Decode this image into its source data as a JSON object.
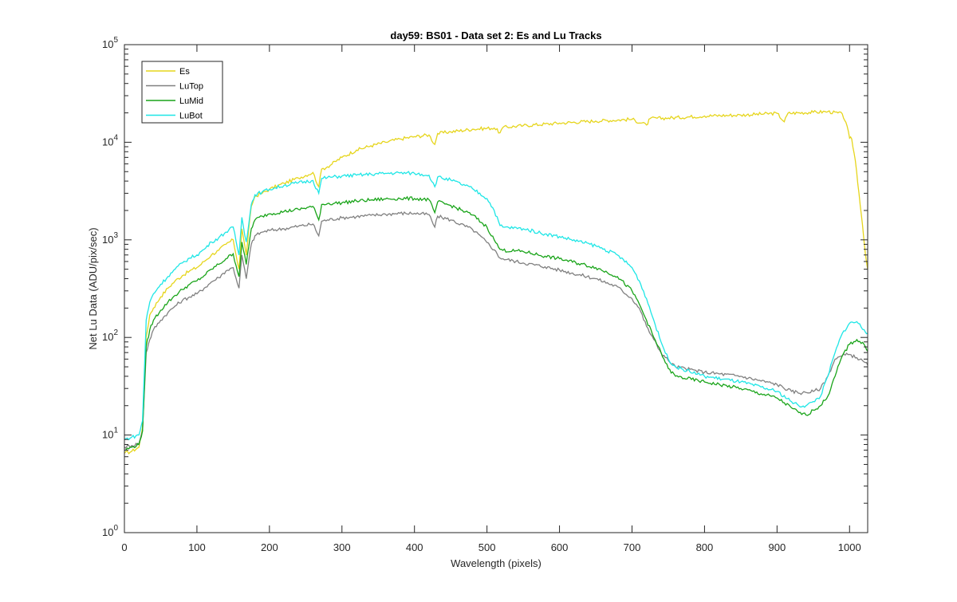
{
  "chart_data": {
    "type": "line",
    "title": "day59: BS01 - Data set 2: Es and Lu Tracks",
    "xlabel": "Wavelength (pixels)",
    "ylabel": "Net Lu Data (ADU/pix/sec)",
    "xlim": [
      0,
      1025
    ],
    "ylim": [
      1,
      100000
    ],
    "yscale": "log",
    "grid": false,
    "legend_location": "top-left",
    "x_ticks": [
      "0",
      "100",
      "200",
      "300",
      "400",
      "500",
      "600",
      "700",
      "800",
      "900",
      "1000"
    ],
    "y_ticks": [
      {
        "base": "10",
        "exp": "0"
      },
      {
        "base": "10",
        "exp": "1"
      },
      {
        "base": "10",
        "exp": "2"
      },
      {
        "base": "10",
        "exp": "3"
      },
      {
        "base": "10",
        "exp": "4"
      },
      {
        "base": "10",
        "exp": "5"
      }
    ],
    "series": [
      {
        "name": "Es",
        "color": "#e6d51c",
        "points": [
          [
            0,
            6.5
          ],
          [
            10,
            6.8
          ],
          [
            20,
            7.5
          ],
          [
            25,
            12
          ],
          [
            30,
            100
          ],
          [
            35,
            170
          ],
          [
            40,
            200
          ],
          [
            50,
            260
          ],
          [
            60,
            320
          ],
          [
            70,
            380
          ],
          [
            80,
            430
          ],
          [
            90,
            480
          ],
          [
            100,
            520
          ],
          [
            110,
            600
          ],
          [
            120,
            700
          ],
          [
            130,
            780
          ],
          [
            140,
            900
          ],
          [
            150,
            1000
          ],
          [
            158,
            500
          ],
          [
            162,
            1300
          ],
          [
            168,
            700
          ],
          [
            175,
            2200
          ],
          [
            180,
            2800
          ],
          [
            190,
            3000
          ],
          [
            200,
            3300
          ],
          [
            220,
            3800
          ],
          [
            240,
            4300
          ],
          [
            260,
            4900
          ],
          [
            268,
            3500
          ],
          [
            272,
            5300
          ],
          [
            280,
            5600
          ],
          [
            300,
            7000
          ],
          [
            320,
            8300
          ],
          [
            340,
            9200
          ],
          [
            360,
            10000
          ],
          [
            380,
            10800
          ],
          [
            400,
            11400
          ],
          [
            420,
            11900
          ],
          [
            428,
            9500
          ],
          [
            432,
            12300
          ],
          [
            450,
            12800
          ],
          [
            480,
            13600
          ],
          [
            510,
            14000
          ],
          [
            518,
            12500
          ],
          [
            522,
            14200
          ],
          [
            550,
            14800
          ],
          [
            600,
            15700
          ],
          [
            650,
            16500
          ],
          [
            700,
            17200
          ],
          [
            720,
            15000
          ],
          [
            725,
            17500
          ],
          [
            750,
            17700
          ],
          [
            800,
            18600
          ],
          [
            850,
            19000
          ],
          [
            900,
            19800
          ],
          [
            910,
            16200
          ],
          [
            915,
            19800
          ],
          [
            950,
            20300
          ],
          [
            970,
            20600
          ],
          [
            990,
            19500
          ],
          [
            995,
            16000
          ],
          [
            1000,
            11000
          ],
          [
            1003,
            10800
          ],
          [
            1008,
            6500
          ],
          [
            1013,
            3000
          ],
          [
            1018,
            1400
          ],
          [
            1022,
            700
          ],
          [
            1025,
            500
          ]
        ]
      },
      {
        "name": "LuTop",
        "color": "#808080",
        "points": [
          [
            0,
            7.5
          ],
          [
            10,
            7.8
          ],
          [
            20,
            8.2
          ],
          [
            25,
            11
          ],
          [
            30,
            70
          ],
          [
            35,
            95
          ],
          [
            40,
            120
          ],
          [
            50,
            150
          ],
          [
            60,
            180
          ],
          [
            70,
            210
          ],
          [
            80,
            240
          ],
          [
            90,
            260
          ],
          [
            100,
            280
          ],
          [
            110,
            320
          ],
          [
            120,
            370
          ],
          [
            130,
            410
          ],
          [
            140,
            480
          ],
          [
            150,
            520
          ],
          [
            158,
            320
          ],
          [
            162,
            700
          ],
          [
            168,
            400
          ],
          [
            175,
            900
          ],
          [
            180,
            1100
          ],
          [
            190,
            1200
          ],
          [
            200,
            1250
          ],
          [
            220,
            1300
          ],
          [
            240,
            1380
          ],
          [
            260,
            1450
          ],
          [
            268,
            1100
          ],
          [
            272,
            1550
          ],
          [
            280,
            1600
          ],
          [
            300,
            1680
          ],
          [
            320,
            1730
          ],
          [
            340,
            1780
          ],
          [
            360,
            1830
          ],
          [
            380,
            1870
          ],
          [
            400,
            1870
          ],
          [
            420,
            1820
          ],
          [
            428,
            1350
          ],
          [
            432,
            1750
          ],
          [
            450,
            1600
          ],
          [
            480,
            1280
          ],
          [
            500,
            940
          ],
          [
            510,
            790
          ],
          [
            518,
            650
          ],
          [
            522,
            640
          ],
          [
            550,
            580
          ],
          [
            580,
            530
          ],
          [
            600,
            490
          ],
          [
            650,
            400
          ],
          [
            680,
            330
          ],
          [
            700,
            250
          ],
          [
            710,
            200
          ],
          [
            720,
            130
          ],
          [
            730,
            95
          ],
          [
            740,
            70
          ],
          [
            750,
            58
          ],
          [
            760,
            50
          ],
          [
            800,
            44
          ],
          [
            850,
            40
          ],
          [
            900,
            33
          ],
          [
            920,
            28
          ],
          [
            935,
            27
          ],
          [
            950,
            28
          ],
          [
            960,
            30
          ],
          [
            970,
            40
          ],
          [
            980,
            60
          ],
          [
            990,
            65
          ],
          [
            1000,
            67
          ],
          [
            1010,
            62
          ],
          [
            1020,
            56
          ],
          [
            1025,
            52
          ]
        ]
      },
      {
        "name": "LuMid",
        "color": "#19a419",
        "points": [
          [
            0,
            7
          ],
          [
            10,
            7.5
          ],
          [
            20,
            8
          ],
          [
            25,
            11
          ],
          [
            30,
            80
          ],
          [
            35,
            120
          ],
          [
            40,
            150
          ],
          [
            50,
            190
          ],
          [
            60,
            230
          ],
          [
            70,
            270
          ],
          [
            80,
            310
          ],
          [
            90,
            350
          ],
          [
            100,
            380
          ],
          [
            110,
            430
          ],
          [
            120,
            500
          ],
          [
            130,
            560
          ],
          [
            140,
            640
          ],
          [
            150,
            720
          ],
          [
            158,
            420
          ],
          [
            162,
            950
          ],
          [
            168,
            560
          ],
          [
            175,
            1300
          ],
          [
            180,
            1600
          ],
          [
            190,
            1750
          ],
          [
            200,
            1850
          ],
          [
            220,
            1950
          ],
          [
            240,
            2050
          ],
          [
            260,
            2200
          ],
          [
            268,
            1600
          ],
          [
            272,
            2300
          ],
          [
            280,
            2350
          ],
          [
            300,
            2400
          ],
          [
            320,
            2500
          ],
          [
            340,
            2560
          ],
          [
            360,
            2620
          ],
          [
            380,
            2650
          ],
          [
            400,
            2650
          ],
          [
            420,
            2580
          ],
          [
            428,
            1900
          ],
          [
            432,
            2450
          ],
          [
            450,
            2250
          ],
          [
            480,
            1800
          ],
          [
            500,
            1350
          ],
          [
            510,
            1000
          ],
          [
            518,
            800
          ],
          [
            522,
            780
          ],
          [
            550,
            760
          ],
          [
            580,
            680
          ],
          [
            600,
            640
          ],
          [
            650,
            520
          ],
          [
            680,
            420
          ],
          [
            700,
            300
          ],
          [
            710,
            220
          ],
          [
            720,
            150
          ],
          [
            730,
            100
          ],
          [
            740,
            70
          ],
          [
            750,
            48
          ],
          [
            760,
            40
          ],
          [
            800,
            35
          ],
          [
            850,
            30
          ],
          [
            900,
            24
          ],
          [
            920,
            19
          ],
          [
            930,
            17
          ],
          [
            940,
            16
          ],
          [
            950,
            18
          ],
          [
            960,
            20
          ],
          [
            970,
            25
          ],
          [
            980,
            40
          ],
          [
            990,
            65
          ],
          [
            1000,
            85
          ],
          [
            1010,
            95
          ],
          [
            1020,
            85
          ],
          [
            1025,
            72
          ]
        ]
      },
      {
        "name": "LuBot",
        "color": "#1ee6e6",
        "points": [
          [
            0,
            9
          ],
          [
            10,
            9.5
          ],
          [
            20,
            10
          ],
          [
            25,
            14
          ],
          [
            30,
            150
          ],
          [
            35,
            230
          ],
          [
            40,
            280
          ],
          [
            50,
            350
          ],
          [
            60,
            420
          ],
          [
            70,
            500
          ],
          [
            80,
            580
          ],
          [
            90,
            650
          ],
          [
            100,
            700
          ],
          [
            110,
            800
          ],
          [
            120,
            950
          ],
          [
            130,
            1050
          ],
          [
            140,
            1200
          ],
          [
            150,
            1350
          ],
          [
            158,
            700
          ],
          [
            162,
            1700
          ],
          [
            168,
            950
          ],
          [
            175,
            2300
          ],
          [
            180,
            2900
          ],
          [
            190,
            3100
          ],
          [
            200,
            3300
          ],
          [
            220,
            3600
          ],
          [
            240,
            3850
          ],
          [
            260,
            4050
          ],
          [
            268,
            3000
          ],
          [
            272,
            4250
          ],
          [
            280,
            4350
          ],
          [
            300,
            4500
          ],
          [
            320,
            4600
          ],
          [
            340,
            4700
          ],
          [
            360,
            4800
          ],
          [
            380,
            4850
          ],
          [
            400,
            4800
          ],
          [
            420,
            4600
          ],
          [
            428,
            3500
          ],
          [
            432,
            4400
          ],
          [
            450,
            4100
          ],
          [
            480,
            3350
          ],
          [
            500,
            2650
          ],
          [
            510,
            2000
          ],
          [
            518,
            1400
          ],
          [
            522,
            1350
          ],
          [
            550,
            1300
          ],
          [
            580,
            1150
          ],
          [
            600,
            1080
          ],
          [
            650,
            870
          ],
          [
            680,
            700
          ],
          [
            700,
            520
          ],
          [
            710,
            380
          ],
          [
            720,
            250
          ],
          [
            730,
            150
          ],
          [
            740,
            90
          ],
          [
            750,
            60
          ],
          [
            760,
            50
          ],
          [
            800,
            40
          ],
          [
            850,
            35
          ],
          [
            900,
            28
          ],
          [
            920,
            22
          ],
          [
            930,
            20
          ],
          [
            940,
            20
          ],
          [
            950,
            22
          ],
          [
            960,
            25
          ],
          [
            970,
            40
          ],
          [
            980,
            70
          ],
          [
            990,
            110
          ],
          [
            1000,
            140
          ],
          [
            1010,
            145
          ],
          [
            1020,
            120
          ],
          [
            1025,
            110
          ]
        ]
      }
    ]
  }
}
